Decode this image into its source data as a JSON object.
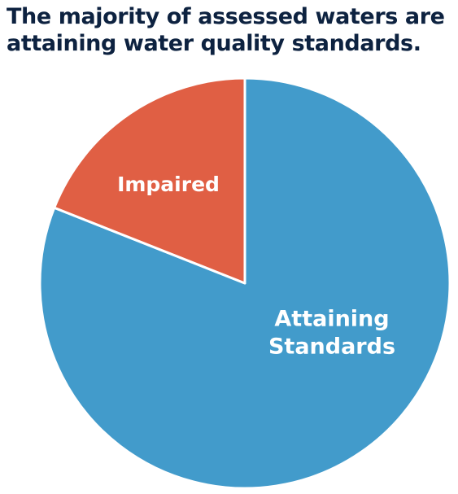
{
  "chart_data": {
    "type": "pie",
    "title_lines": [
      "The majority of assessed waters are",
      "attaining water quality standards."
    ],
    "slices": [
      {
        "name": "Attaining Standards",
        "label_lines": [
          "Attaining",
          "Standards"
        ],
        "value": 81,
        "color": "#429bcb"
      },
      {
        "name": "Impaired",
        "label_lines": [
          "Impaired"
        ],
        "value": 19,
        "color": "#e05f44"
      }
    ],
    "slice_edge_color": "#ffffff",
    "start": "top, clockwise",
    "legend": "none"
  }
}
